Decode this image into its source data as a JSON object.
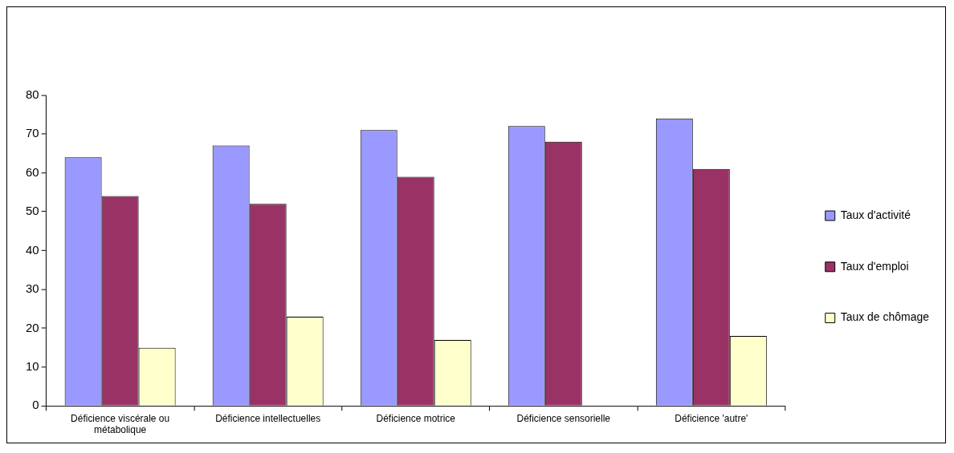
{
  "chart_data": {
    "type": "bar",
    "categories": [
      "Déficience viscérale ou métabolique",
      "Déficience intellectuelles",
      "Déficience motrice",
      "Déficience sensorielle",
      "Déficience 'autre'"
    ],
    "series": [
      {
        "name": "Taux d'activité",
        "color": "#9999ff",
        "values": [
          64,
          67,
          71,
          72,
          74
        ]
      },
      {
        "name": "Taux d'emploi",
        "color": "#993366",
        "values": [
          54,
          52,
          59,
          68,
          61
        ]
      },
      {
        "name": "Taux de chômage",
        "color": "#ffffcc",
        "values": [
          15,
          23,
          17,
          null,
          18
        ]
      }
    ],
    "ylim": [
      0,
      80
    ],
    "yticks": [
      0,
      10,
      20,
      30,
      40,
      50,
      60,
      70,
      80
    ],
    "grid": false,
    "legend": "right"
  }
}
